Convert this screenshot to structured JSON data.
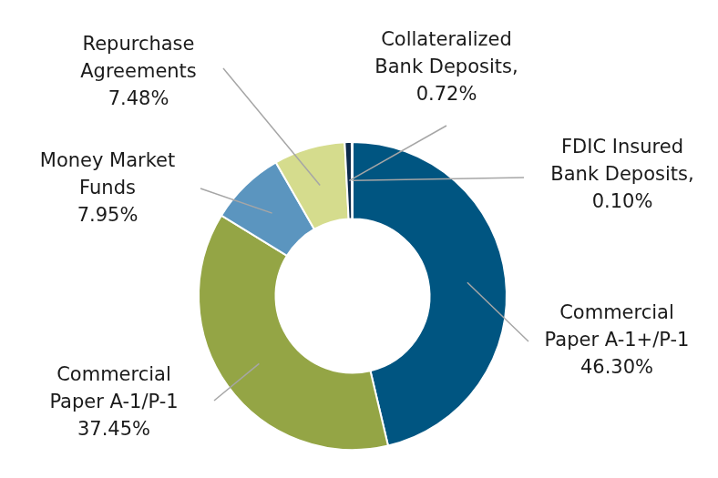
{
  "chart_data": {
    "type": "doughnut",
    "categories": [
      "Commercial Paper A-1+/P-1",
      "Commercial Paper A-1/P-1",
      "Money Market Funds",
      "Repurchase Agreements",
      "Collateralized Bank Deposits,",
      "FDIC Insured Bank Deposits,"
    ],
    "values": [
      46.3,
      37.45,
      7.95,
      7.48,
      0.72,
      0.1
    ],
    "value_labels": [
      "46.30%",
      "37.45%",
      "7.95%",
      "7.48%",
      "0.72%",
      "0.10%"
    ],
    "colors": [
      "#005581",
      "#94a545",
      "#5b95bf",
      "#d5dc8d",
      "#0c2b4b",
      "#7fb2d9"
    ],
    "data_labels": true
  }
}
